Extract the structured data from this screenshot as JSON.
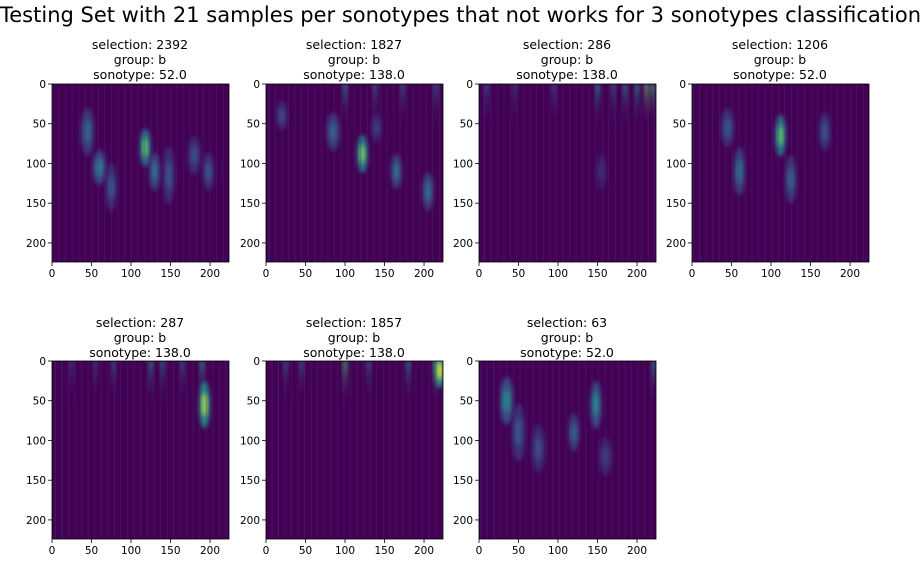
{
  "figure": {
    "suptitle": "Testing Set with 21 samples per sonotypes that not works for 3 sonotypes classification"
  },
  "panels": [
    {
      "selection": "selection: 2392",
      "group": "group: b",
      "sonotype": "sonotype: 52.0"
    },
    {
      "selection": "selection: 1827",
      "group": "group: b",
      "sonotype": "sonotype: 138.0"
    },
    {
      "selection": "selection: 286",
      "group": "group: b",
      "sonotype": "sonotype: 138.0"
    },
    {
      "selection": "selection: 1206",
      "group": "group: b",
      "sonotype": "sonotype: 52.0"
    },
    {
      "selection": "selection: 287",
      "group": "group: b",
      "sonotype": "sonotype: 138.0"
    },
    {
      "selection": "selection: 1857",
      "group": "group: b",
      "sonotype": "sonotype: 138.0"
    },
    {
      "selection": "selection: 63",
      "group": "group: b",
      "sonotype": "sonotype: 52.0"
    }
  ],
  "colors": {
    "background": "#440154",
    "colormap": [
      "#440154",
      "#3b528b",
      "#21918c",
      "#5ec962",
      "#fde725"
    ]
  },
  "chart_data": [
    {
      "type": "heatmap",
      "colormap": "viridis",
      "xlim": [
        0,
        224
      ],
      "ylim": [
        224,
        0
      ],
      "x_ticks": [
        "0",
        "50",
        "100",
        "150",
        "200"
      ],
      "y_ticks": [
        "0",
        "50",
        "100",
        "150",
        "200"
      ],
      "blobs": [
        {
          "x": 45,
          "y": 60,
          "w": 6,
          "h": 25,
          "v": 0.35
        },
        {
          "x": 60,
          "y": 105,
          "w": 6,
          "h": 18,
          "v": 0.45
        },
        {
          "x": 75,
          "y": 130,
          "w": 5,
          "h": 25,
          "v": 0.3
        },
        {
          "x": 118,
          "y": 80,
          "w": 5,
          "h": 20,
          "v": 0.75
        },
        {
          "x": 130,
          "y": 110,
          "w": 5,
          "h": 20,
          "v": 0.4
        },
        {
          "x": 148,
          "y": 115,
          "w": 5,
          "h": 30,
          "v": 0.3
        },
        {
          "x": 180,
          "y": 90,
          "w": 6,
          "h": 20,
          "v": 0.25
        },
        {
          "x": 198,
          "y": 110,
          "w": 5,
          "h": 20,
          "v": 0.3
        }
      ],
      "columns": []
    },
    {
      "type": "heatmap",
      "colormap": "viridis",
      "xlim": [
        0,
        224
      ],
      "ylim": [
        224,
        0
      ],
      "x_ticks": [
        "0",
        "50",
        "100",
        "150",
        "200"
      ],
      "y_ticks": [
        "0",
        "50",
        "100",
        "150",
        "200"
      ],
      "blobs": [
        {
          "x": 20,
          "y": 40,
          "w": 5,
          "h": 15,
          "v": 0.25
        },
        {
          "x": 85,
          "y": 60,
          "w": 6,
          "h": 20,
          "v": 0.35
        },
        {
          "x": 122,
          "y": 88,
          "w": 5,
          "h": 20,
          "v": 0.8
        },
        {
          "x": 165,
          "y": 110,
          "w": 5,
          "h": 18,
          "v": 0.4
        },
        {
          "x": 205,
          "y": 135,
          "w": 5,
          "h": 20,
          "v": 0.4
        },
        {
          "x": 140,
          "y": 55,
          "w": 5,
          "h": 15,
          "v": 0.2
        }
      ],
      "columns": [
        {
          "x": 100,
          "v": 0.45
        },
        {
          "x": 138,
          "v": 0.3
        },
        {
          "x": 173,
          "v": 0.3
        },
        {
          "x": 215,
          "v": 0.3
        }
      ]
    },
    {
      "type": "heatmap",
      "colormap": "viridis",
      "xlim": [
        0,
        224
      ],
      "ylim": [
        224,
        0
      ],
      "x_ticks": [
        "0",
        "50",
        "100",
        "150",
        "200"
      ],
      "y_ticks": [
        "0",
        "50",
        "100",
        "150",
        "200"
      ],
      "blobs": [
        {
          "x": 155,
          "y": 110,
          "w": 5,
          "h": 20,
          "v": 0.15
        }
      ],
      "columns": [
        {
          "x": 10,
          "v": 0.25
        },
        {
          "x": 45,
          "v": 0.2
        },
        {
          "x": 95,
          "v": 0.25
        },
        {
          "x": 150,
          "v": 0.5
        },
        {
          "x": 170,
          "v": 0.3
        },
        {
          "x": 185,
          "v": 0.45
        },
        {
          "x": 200,
          "v": 0.5
        },
        {
          "x": 212,
          "v": 0.75
        },
        {
          "x": 220,
          "v": 0.6
        }
      ]
    },
    {
      "type": "heatmap",
      "colormap": "viridis",
      "xlim": [
        0,
        224
      ],
      "ylim": [
        224,
        0
      ],
      "x_ticks": [
        "0",
        "50",
        "100",
        "150",
        "200"
      ],
      "y_ticks": [
        "0",
        "50",
        "100",
        "150",
        "200"
      ],
      "blobs": [
        {
          "x": 45,
          "y": 55,
          "w": 6,
          "h": 20,
          "v": 0.3
        },
        {
          "x": 60,
          "y": 110,
          "w": 5,
          "h": 25,
          "v": 0.4
        },
        {
          "x": 112,
          "y": 65,
          "w": 5,
          "h": 22,
          "v": 0.75
        },
        {
          "x": 125,
          "y": 120,
          "w": 5,
          "h": 25,
          "v": 0.35
        },
        {
          "x": 168,
          "y": 60,
          "w": 5,
          "h": 20,
          "v": 0.3
        }
      ],
      "columns": []
    },
    {
      "type": "heatmap",
      "colormap": "viridis",
      "xlim": [
        0,
        224
      ],
      "ylim": [
        224,
        0
      ],
      "x_ticks": [
        "0",
        "50",
        "100",
        "150",
        "200"
      ],
      "y_ticks": [
        "0",
        "50",
        "100",
        "150",
        "200"
      ],
      "blobs": [
        {
          "x": 193,
          "y": 55,
          "w": 5,
          "h": 25,
          "v": 0.9
        }
      ],
      "columns": [
        {
          "x": 25,
          "v": 0.2
        },
        {
          "x": 55,
          "v": 0.2
        },
        {
          "x": 78,
          "v": 0.3
        },
        {
          "x": 125,
          "v": 0.45
        },
        {
          "x": 140,
          "v": 0.35
        },
        {
          "x": 165,
          "v": 0.3
        },
        {
          "x": 190,
          "v": 0.5
        }
      ]
    },
    {
      "type": "heatmap",
      "colormap": "viridis",
      "xlim": [
        0,
        224
      ],
      "ylim": [
        224,
        0
      ],
      "x_ticks": [
        "0",
        "50",
        "100",
        "150",
        "200"
      ],
      "y_ticks": [
        "0",
        "50",
        "100",
        "150",
        "200"
      ],
      "blobs": [
        {
          "x": 220,
          "y": 12,
          "w": 5,
          "h": 18,
          "v": 1.0
        }
      ],
      "columns": [
        {
          "x": 25,
          "v": 0.3
        },
        {
          "x": 45,
          "v": 0.3
        },
        {
          "x": 100,
          "v": 0.65
        },
        {
          "x": 130,
          "v": 0.3
        },
        {
          "x": 180,
          "v": 0.45
        },
        {
          "x": 215,
          "v": 0.6
        }
      ]
    },
    {
      "type": "heatmap",
      "colormap": "viridis",
      "xlim": [
        0,
        224
      ],
      "ylim": [
        224,
        0
      ],
      "x_ticks": [
        "0",
        "50",
        "100",
        "150",
        "200"
      ],
      "y_ticks": [
        "0",
        "50",
        "100",
        "150",
        "200"
      ],
      "blobs": [
        {
          "x": 35,
          "y": 50,
          "w": 6,
          "h": 25,
          "v": 0.5
        },
        {
          "x": 50,
          "y": 90,
          "w": 6,
          "h": 30,
          "v": 0.3
        },
        {
          "x": 75,
          "y": 110,
          "w": 6,
          "h": 25,
          "v": 0.25
        },
        {
          "x": 120,
          "y": 90,
          "w": 5,
          "h": 20,
          "v": 0.35
        },
        {
          "x": 148,
          "y": 55,
          "w": 5,
          "h": 25,
          "v": 0.5
        },
        {
          "x": 160,
          "y": 120,
          "w": 6,
          "h": 20,
          "v": 0.2
        }
      ],
      "columns": [
        {
          "x": 221,
          "v": 0.45
        }
      ]
    }
  ]
}
